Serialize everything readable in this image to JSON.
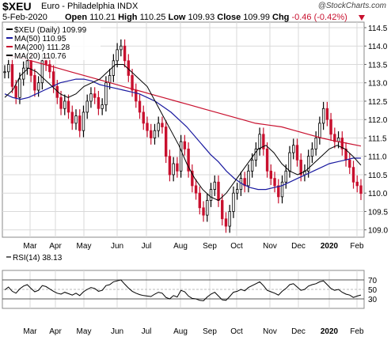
{
  "header": {
    "symbol": "$XEU",
    "name": "Euro - Philadelphia INDX",
    "brand": "@StockCharts.com",
    "date": "5-Feb-2020",
    "open_label": "Open",
    "open": "110.21",
    "high_label": "High",
    "high": "110.25",
    "low_label": "Low",
    "low": "109.93",
    "close_label": "Close",
    "close": "109.99",
    "chg_label": "Chg",
    "chg": "-0.46 (-0.42%)",
    "down_color": "#c8102e"
  },
  "chart_data": [
    {
      "type": "line",
      "panel": "price",
      "legend": [
        {
          "label": "$XEU (Daily) 109.99",
          "color": "#000000"
        },
        {
          "label": "MA(50) 110.95",
          "color": "#1a1aa0"
        },
        {
          "label": "MA(200) 111.28",
          "color": "#c8102e"
        },
        {
          "label": "MA(20) 110.76",
          "color": "#000000"
        }
      ],
      "x_labels": [
        "Mar",
        "Apr",
        "May",
        "Jun",
        "Jul",
        "Aug",
        "Sep",
        "Oct",
        "Nov",
        "Dec",
        "2020",
        "Feb"
      ],
      "bold_x_labels": [
        "2020"
      ],
      "y_ticks": [
        109.0,
        109.5,
        110.0,
        110.5,
        111.0,
        111.5,
        112.0,
        112.5,
        113.0,
        113.5,
        114.0,
        114.5
      ],
      "ylim": [
        108.8,
        114.65
      ],
      "grid": true,
      "series": [
        {
          "name": "$XEU",
          "color": "#000000",
          "values": [
            113.3,
            113.5,
            112.9,
            112.6,
            113.1,
            113.4,
            113.6,
            113.2,
            112.8,
            113.0,
            113.6,
            113.5,
            113.3,
            112.9,
            112.6,
            112.3,
            112.5,
            112.2,
            111.9,
            112.1,
            111.7,
            112.2,
            112.5,
            112.7,
            112.6,
            112.3,
            112.4,
            113.0,
            113.2,
            113.6,
            113.9,
            114.0,
            113.6,
            113.2,
            112.8,
            112.5,
            112.2,
            111.9,
            111.7,
            111.5,
            111.7,
            111.9,
            111.8,
            111.0,
            110.5,
            110.8,
            110.6,
            111.4,
            111.2,
            110.6,
            110.2,
            110.0,
            109.6,
            109.4,
            109.8,
            110.1,
            110.3,
            109.8,
            109.3,
            109.1,
            109.5,
            110.0,
            110.1,
            110.4,
            110.2,
            110.6,
            110.9,
            111.2,
            111.6,
            111.2,
            110.6,
            110.4,
            110.2,
            109.9,
            110.3,
            110.6,
            111.1,
            111.3,
            110.9,
            110.5,
            110.6,
            111.0,
            111.2,
            111.5,
            111.9,
            112.3,
            112.0,
            111.6,
            111.4,
            111.5,
            111.2,
            110.9,
            110.7,
            110.3,
            110.2,
            109.99
          ]
        },
        {
          "name": "MA(50)",
          "color": "#1a1aa0",
          "values": [
            112.7,
            112.6,
            112.55,
            112.6,
            112.7,
            112.8,
            112.9,
            113.0,
            113.05,
            113.1,
            113.1,
            113.05,
            112.95,
            112.9,
            112.85,
            112.8,
            112.75,
            112.7,
            112.6,
            112.5,
            112.35,
            112.2,
            112.0,
            111.8,
            111.55,
            111.3,
            111.05,
            110.85,
            110.6,
            110.4,
            110.25,
            110.15,
            110.1,
            110.1,
            110.15,
            110.2,
            110.3,
            110.4,
            110.5,
            110.6,
            110.7,
            110.8,
            110.85,
            110.9,
            110.95,
            110.95
          ]
        },
        {
          "name": "MA(200)",
          "color": "#c8102e",
          "values": [
            113.75,
            113.7,
            113.6,
            113.5,
            113.4,
            113.3,
            113.2,
            113.1,
            113.0,
            112.9,
            112.8,
            112.7,
            112.6,
            112.5,
            112.4,
            112.3,
            112.2,
            112.1,
            112.0,
            111.9,
            111.85,
            111.8,
            111.7,
            111.6,
            111.5,
            111.42,
            111.35,
            111.28
          ]
        },
        {
          "name": "MA(20)",
          "color": "#000000",
          "values": [
            112.6,
            112.8,
            113.2,
            113.4,
            113.3,
            113.1,
            112.9,
            112.7,
            112.6,
            112.7,
            112.9,
            113.0,
            113.1,
            113.3,
            113.5,
            113.5,
            113.3,
            113.1,
            112.9,
            112.5,
            112.1,
            111.7,
            111.3,
            110.8,
            110.4,
            110.1,
            109.9,
            109.8,
            110.0,
            110.3,
            110.6,
            110.9,
            111.2,
            111.3,
            111.1,
            110.8,
            110.6,
            110.5,
            110.6,
            110.8,
            111.0,
            111.2,
            111.3,
            111.2,
            111.0,
            110.76
          ]
        }
      ]
    },
    {
      "type": "line",
      "panel": "indicator",
      "legend": [
        {
          "label": "RSI(14) 38.13",
          "color": "#000000"
        }
      ],
      "y_ticks": [
        30,
        50,
        70
      ],
      "ylim": [
        10,
        90
      ],
      "grid": true,
      "series": [
        {
          "name": "RSI(14)",
          "color": "#000000",
          "values": [
            49,
            55,
            46,
            42,
            51,
            57,
            60,
            52,
            45,
            48,
            58,
            56,
            51,
            46,
            42,
            40,
            44,
            41,
            38,
            42,
            37,
            45,
            50,
            54,
            52,
            46,
            48,
            58,
            60,
            66,
            68,
            70,
            61,
            53,
            46,
            42,
            39,
            37,
            36,
            35,
            40,
            44,
            42,
            33,
            30,
            37,
            34,
            48,
            45,
            36,
            31,
            30,
            27,
            26,
            34,
            40,
            44,
            36,
            28,
            27,
            35,
            44,
            46,
            50,
            47,
            54,
            58,
            62,
            66,
            58,
            48,
            45,
            42,
            38,
            46,
            52,
            60,
            62,
            55,
            48,
            50,
            57,
            60,
            62,
            66,
            68,
            60,
            52,
            48,
            50,
            44,
            40,
            38,
            33,
            36,
            38.13
          ]
        }
      ]
    }
  ]
}
